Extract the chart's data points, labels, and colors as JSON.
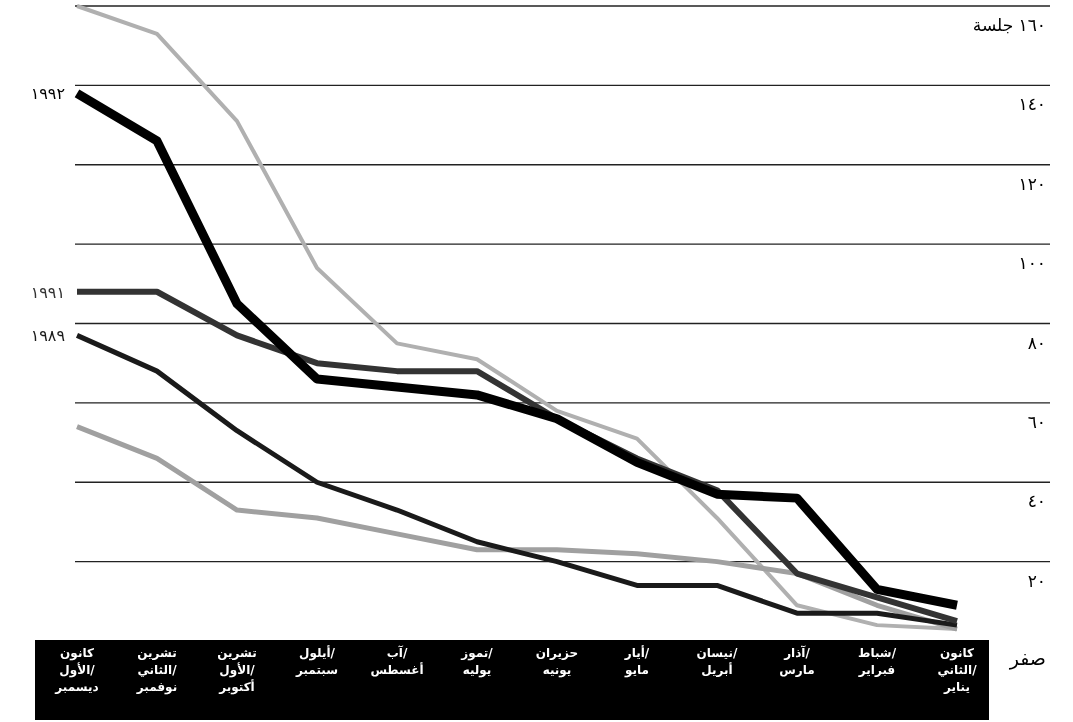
{
  "chart_data": {
    "type": "line",
    "categories": [
      "كانون الأول/ ديسمبر",
      "تشرين الثاني/ نوفمبر",
      "تشرين الأول/ أكتوبر",
      "أيلول/ سبتمبر",
      "آب/ أغسطس",
      "تموز/ يوليه",
      "حزيران يونيه",
      "أيار/ مايو",
      "نيسان/ أبريل",
      "آذار/ مارس",
      "شباط/ فبراير",
      "كانون الثاني/ يناير"
    ],
    "series": [
      {
        "color": "#b0b0b0",
        "values": [
          160,
          153,
          131,
          94,
          75,
          71,
          58,
          51,
          31,
          9,
          4,
          3
        ]
      },
      {
        "color": "#a0a0a0",
        "values": [
          54,
          46,
          33,
          31,
          27,
          23,
          23,
          22,
          20,
          17,
          9,
          3
        ]
      },
      {
        "name": "١٩٨٩",
        "color": "#1a1a1a",
        "values": [
          77,
          68,
          53,
          40,
          33,
          25,
          20,
          14,
          14,
          7,
          7,
          4
        ]
      },
      {
        "name": "١٩٩١",
        "color": "#333333",
        "values": [
          88,
          88,
          77,
          70,
          68,
          68,
          56,
          46,
          38,
          17,
          11,
          5
        ]
      },
      {
        "name": "١٩٩٢",
        "color": "#000000",
        "values": [
          138,
          126,
          85,
          66,
          64,
          62,
          56,
          45,
          37,
          36,
          13,
          9
        ]
      }
    ],
    "ylim": [
      0,
      160
    ],
    "yticks": [
      {
        "value": 0,
        "label": "صفر"
      },
      {
        "value": 20,
        "label": "٢٠"
      },
      {
        "value": 40,
        "label": "٤٠"
      },
      {
        "value": 60,
        "label": "٦٠"
      },
      {
        "value": 80,
        "label": "٨٠"
      },
      {
        "value": 100,
        "label": "١٠٠"
      },
      {
        "value": 120,
        "label": "١٢٠"
      },
      {
        "value": 140,
        "label": "١٤٠"
      },
      {
        "value": 160,
        "label": "١٦٠ جلسة"
      }
    ],
    "grid": "y",
    "legend": false,
    "marker": "none",
    "line_style": "solid"
  }
}
